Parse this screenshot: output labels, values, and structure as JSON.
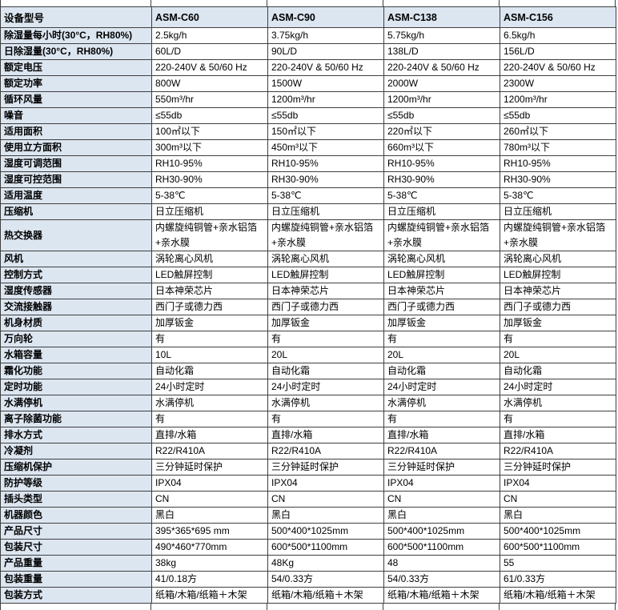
{
  "colors": {
    "header_bg": "#dce6f1",
    "label_bg": "#dce6f1",
    "border": "#3f3f3f",
    "text": "#000000",
    "cell_bg": "#ffffff"
  },
  "table": {
    "header": {
      "label": "设备型号",
      "models": [
        "ASM-C60",
        "ASM-C90",
        "ASM-C138",
        "ASM-C156"
      ]
    },
    "rows": [
      {
        "label": "除湿量每小时(30°C，RH80%)",
        "values": [
          "2.5kg/h",
          "3.75kg/h",
          "5.75kg/h",
          "6.5kg/h"
        ]
      },
      {
        "label": "日除湿量(30°C，RH80%)",
        "values": [
          "60L/D",
          "90L/D",
          "138L/D",
          "156L/D"
        ]
      },
      {
        "label": "额定电压",
        "values": [
          "220-240V & 50/60 Hz",
          "220-240V & 50/60 Hz",
          "220-240V & 50/60 Hz",
          "220-240V & 50/60 Hz"
        ]
      },
      {
        "label": "额定功率",
        "values": [
          "800W",
          "1500W",
          "2000W",
          "2300W"
        ]
      },
      {
        "label": "循环风量",
        "values": [
          "550m³/hr",
          "1200m³/hr",
          "1200m³/hr",
          "1200m³/hr"
        ]
      },
      {
        "label": "噪音",
        "values": [
          "≤55db",
          "≤55db",
          "≤55db",
          "≤55db"
        ]
      },
      {
        "label": "适用面积",
        "values": [
          "100㎡以下",
          "150㎡以下",
          "220㎡以下",
          "260㎡以下"
        ]
      },
      {
        "label": "使用立方面积",
        "values": [
          "300m³以下",
          "450m³以下",
          "660m³以下",
          "780m³以下"
        ]
      },
      {
        "label": "湿度可调范围",
        "values": [
          "RH10-95%",
          "RH10-95%",
          "RH10-95%",
          "RH10-95%"
        ]
      },
      {
        "label": "湿度可控范围",
        "values": [
          "RH30-90%",
          "RH30-90%",
          "RH30-90%",
          "RH30-90%"
        ]
      },
      {
        "label": "适用温度",
        "values": [
          "5-38℃",
          "5-38℃",
          "5-38℃",
          "5-38℃"
        ]
      },
      {
        "label": "压缩机",
        "values": [
          "日立压缩机",
          "日立压缩机",
          "日立压缩机",
          "日立压缩机"
        ]
      },
      {
        "label": "热交换器",
        "values": [
          "内螺旋纯铜管+亲水铝箔+亲水膜",
          "内螺旋纯铜管+亲水铝箔+亲水膜",
          "内螺旋纯铜管+亲水铝箔+亲水膜",
          "内螺旋纯铜管+亲水铝箔+亲水膜"
        ]
      },
      {
        "label": "风机",
        "values": [
          "涡轮离心风机",
          "涡轮离心风机",
          "涡轮离心风机",
          "涡轮离心风机"
        ]
      },
      {
        "label": "控制方式",
        "values": [
          "LED触屏控制",
          "LED触屏控制",
          "LED触屏控制",
          "LED触屏控制"
        ]
      },
      {
        "label": "湿度传感器",
        "values": [
          "日本神荣芯片",
          "日本神荣芯片",
          "日本神荣芯片",
          "日本神荣芯片"
        ]
      },
      {
        "label": "交流接触器",
        "values": [
          "西门子或德力西",
          "西门子或德力西",
          "西门子或德力西",
          "西门子或德力西"
        ]
      },
      {
        "label": "机身材质",
        "values": [
          "加厚钣金",
          "加厚钣金",
          "加厚钣金",
          "加厚钣金"
        ]
      },
      {
        "label": "万向轮",
        "values": [
          "有",
          "有",
          "有",
          "有"
        ]
      },
      {
        "label": "水箱容量",
        "values": [
          "10L",
          "20L",
          "20L",
          "20L"
        ]
      },
      {
        "label": "霜化功能",
        "values": [
          "自动化霜",
          "自动化霜",
          "自动化霜",
          "自动化霜"
        ]
      },
      {
        "label": "定时功能",
        "values": [
          "24小时定时",
          "24小时定时",
          "24小时定时",
          "24小时定时"
        ]
      },
      {
        "label": "水满停机",
        "values": [
          "水满停机",
          "水满停机",
          "水满停机",
          "水满停机"
        ]
      },
      {
        "label": "离子除菌功能",
        "values": [
          "有",
          "有",
          "有",
          "有"
        ]
      },
      {
        "label": "排水方式",
        "values": [
          "直排/水箱",
          "直排/水箱",
          "直排/水箱",
          "直排/水箱"
        ]
      },
      {
        "label": "冷凝剂",
        "values": [
          "R22/R410A",
          "R22/R410A",
          "R22/R410A",
          "R22/R410A"
        ]
      },
      {
        "label": "压缩机保护",
        "values": [
          "三分钟延时保护",
          "三分钟延时保护",
          "三分钟延时保护",
          "三分钟延时保护"
        ]
      },
      {
        "label": "防护等级",
        "values": [
          "IPX04",
          "IPX04",
          "IPX04",
          "IPX04"
        ]
      },
      {
        "label": "插头类型",
        "values": [
          "CN",
          "CN",
          "CN",
          "CN"
        ]
      },
      {
        "label": "机器颜色",
        "values": [
          "黑白",
          "黑白",
          "黑白",
          "黑白"
        ]
      },
      {
        "label": "产品尺寸",
        "values": [
          "395*365*695 mm",
          "500*400*1025mm",
          "500*400*1025mm",
          "500*400*1025mm"
        ]
      },
      {
        "label": "包装尺寸",
        "values": [
          "490*460*770mm",
          "600*500*1100mm",
          "600*500*1100mm",
          "600*500*1100mm"
        ]
      },
      {
        "label": "产品重量",
        "values": [
          "38kg",
          "48Kg",
          "48",
          "55"
        ]
      },
      {
        "label": "包装重量",
        "values": [
          "41/0.18方",
          "54/0.33方",
          "54/0.33方",
          "61/0.33方"
        ]
      },
      {
        "label": "包装方式",
        "values": [
          "纸箱/木箱/纸箱＋木架",
          "纸箱/木箱/纸箱＋木架",
          "纸箱/木箱/纸箱＋木架",
          "纸箱/木箱/纸箱＋木架"
        ]
      }
    ]
  }
}
